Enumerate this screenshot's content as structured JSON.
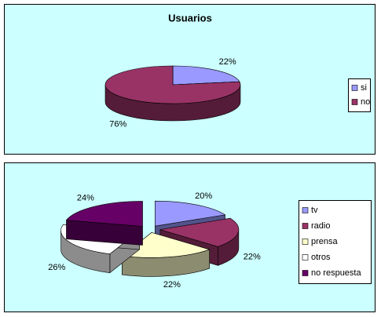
{
  "chart_data": [
    {
      "type": "pie3d",
      "title": "Usuarios",
      "categories": [
        "si",
        "no"
      ],
      "values": [
        22,
        76
      ],
      "value_labels": [
        "22%",
        "76%"
      ],
      "colors": [
        "#9999ff",
        "#993366"
      ],
      "exploded": false
    },
    {
      "type": "pie3d",
      "categories": [
        "tv",
        "radio",
        "prensa",
        "otros",
        "no respuesta"
      ],
      "values": [
        20,
        22,
        22,
        26,
        24
      ],
      "value_labels": [
        "20%",
        "22%",
        "22%",
        "26%",
        "24%"
      ],
      "colors": [
        "#9999ff",
        "#993366",
        "#ffffcc",
        "#ffffff",
        "#660066"
      ],
      "exploded": true
    }
  ]
}
